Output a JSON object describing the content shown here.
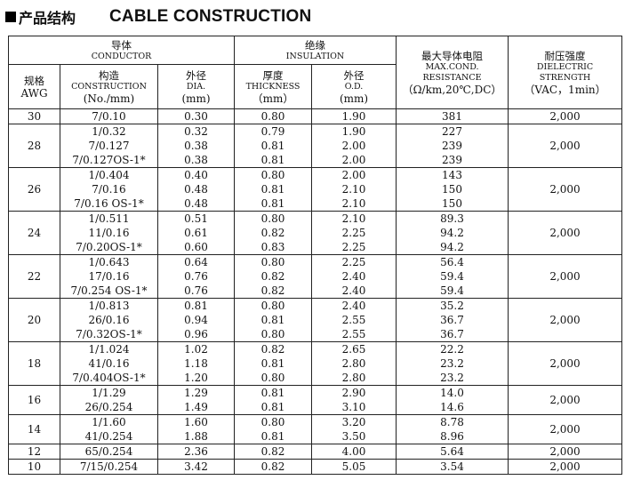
{
  "heading": {
    "cn": "产品结构",
    "en": "CABLE CONSTRUCTION"
  },
  "headers": {
    "conductor_cn": "导体",
    "conductor_en": "CONDUCTOR",
    "insulation_cn": "绝缘",
    "insulation_en": "INSULATION",
    "resistance_cn": "最大导体电阻",
    "resistance_en1": "MAX.COND.",
    "resistance_en2": "RESISTANCE",
    "resistance_unit": "（Ω/km,20℃,DC）",
    "dielectric_cn": "耐压强度",
    "dielectric_en1": "DIELECTRIC",
    "dielectric_en2": "STRENGTH",
    "dielectric_unit": "（VAC，1min）",
    "awg_cn": "规格",
    "awg_en": "AWG",
    "construction_cn": "构造",
    "construction_en": "CONSTRUCTION",
    "construction_unit": "(No./mm)",
    "dia_cn": "外径",
    "dia_en": "DIA.",
    "dia_unit": "(mm)",
    "thickness_cn": "厚度",
    "thickness_en": "THICKNESS",
    "thickness_unit": "（mm）",
    "od_cn": "外径",
    "od_en": "O.D.",
    "od_unit": "(mm)"
  },
  "rows": [
    {
      "awg": "30",
      "construction": [
        "7/0.10"
      ],
      "dia": [
        "0.30"
      ],
      "thickness": [
        "0.80"
      ],
      "od": [
        "1.90"
      ],
      "resistance": [
        "381"
      ],
      "dielectric": "2,000"
    },
    {
      "awg": "28",
      "construction": [
        "1/0.32",
        "7/0.127",
        "7/0.127OS-1*"
      ],
      "dia": [
        "0.32",
        "0.38",
        "0.38"
      ],
      "thickness": [
        "0.79",
        "0.81",
        "0.81"
      ],
      "od": [
        "1.90",
        "2.00",
        "2.00"
      ],
      "resistance": [
        "227",
        "239",
        "239"
      ],
      "dielectric": "2,000"
    },
    {
      "awg": "26",
      "construction": [
        "1/0.404",
        "7/0.16",
        "7/0.16 OS-1*"
      ],
      "dia": [
        "0.40",
        "0.48",
        "0.48"
      ],
      "thickness": [
        "0.80",
        "0.81",
        "0.81"
      ],
      "od": [
        "2.00",
        "2.10",
        "2.10"
      ],
      "resistance": [
        "143",
        "150",
        "150"
      ],
      "dielectric": "2,000"
    },
    {
      "awg": "24",
      "construction": [
        "1/0.511",
        "11/0.16",
        "7/0.20OS-1*"
      ],
      "dia": [
        "0.51",
        "0.61",
        "0.60"
      ],
      "thickness": [
        "0.80",
        "0.82",
        "0.83"
      ],
      "od": [
        "2.10",
        "2.25",
        "2.25"
      ],
      "resistance": [
        "89.3",
        "94.2",
        "94.2"
      ],
      "dielectric": "2,000"
    },
    {
      "awg": "22",
      "construction": [
        "1/0.643",
        "17/0.16",
        "7/0.254 OS-1*"
      ],
      "dia": [
        "0.64",
        "0.76",
        "0.76"
      ],
      "thickness": [
        "0.80",
        "0.82",
        "0.82"
      ],
      "od": [
        "2.25",
        "2.40",
        "2.40"
      ],
      "resistance": [
        "56.4",
        "59.4",
        "59.4"
      ],
      "dielectric": "2,000"
    },
    {
      "awg": "20",
      "construction": [
        "1/0.813",
        "26/0.16",
        "7/0.32OS-1*"
      ],
      "dia": [
        "0.81",
        "0.94",
        "0.96"
      ],
      "thickness": [
        "0.80",
        "0.81",
        "0.80"
      ],
      "od": [
        "2.40",
        "2.55",
        "2.55"
      ],
      "resistance": [
        "35.2",
        "36.7",
        "36.7"
      ],
      "dielectric": "2,000"
    },
    {
      "awg": "18",
      "construction": [
        "1/1.024",
        "41/0.16",
        "7/0.404OS-1*"
      ],
      "dia": [
        "1.02",
        "1.18",
        "1.20"
      ],
      "thickness": [
        "0.82",
        "0.81",
        "0.80"
      ],
      "od": [
        "2.65",
        "2.80",
        "2.80"
      ],
      "resistance": [
        "22.2",
        "23.2",
        "23.2"
      ],
      "dielectric": "2,000"
    },
    {
      "awg": "16",
      "construction": [
        "1/1.29",
        "26/0.254"
      ],
      "dia": [
        "1.29",
        "1.49"
      ],
      "thickness": [
        "0.81",
        "0.81"
      ],
      "od": [
        "2.90",
        "3.10"
      ],
      "resistance": [
        "14.0",
        "14.6"
      ],
      "dielectric": "2,000"
    },
    {
      "awg": "14",
      "construction": [
        "1/1.60",
        "41/0.254"
      ],
      "dia": [
        "1.60",
        "1.88"
      ],
      "thickness": [
        "0.80",
        "0.81"
      ],
      "od": [
        "3.20",
        "3.50"
      ],
      "resistance": [
        "8.78",
        "8.96"
      ],
      "dielectric": "2,000"
    },
    {
      "awg": "12",
      "construction": [
        "65/0.254"
      ],
      "dia": [
        "2.36"
      ],
      "thickness": [
        "0.82"
      ],
      "od": [
        "4.00"
      ],
      "resistance": [
        "5.64"
      ],
      "dielectric": "2,000"
    },
    {
      "awg": "10",
      "construction": [
        "7/15/0.254"
      ],
      "dia": [
        "3.42"
      ],
      "thickness": [
        "0.82"
      ],
      "od": [
        "5.05"
      ],
      "resistance": [
        "3.54"
      ],
      "dielectric": "2,000"
    }
  ]
}
